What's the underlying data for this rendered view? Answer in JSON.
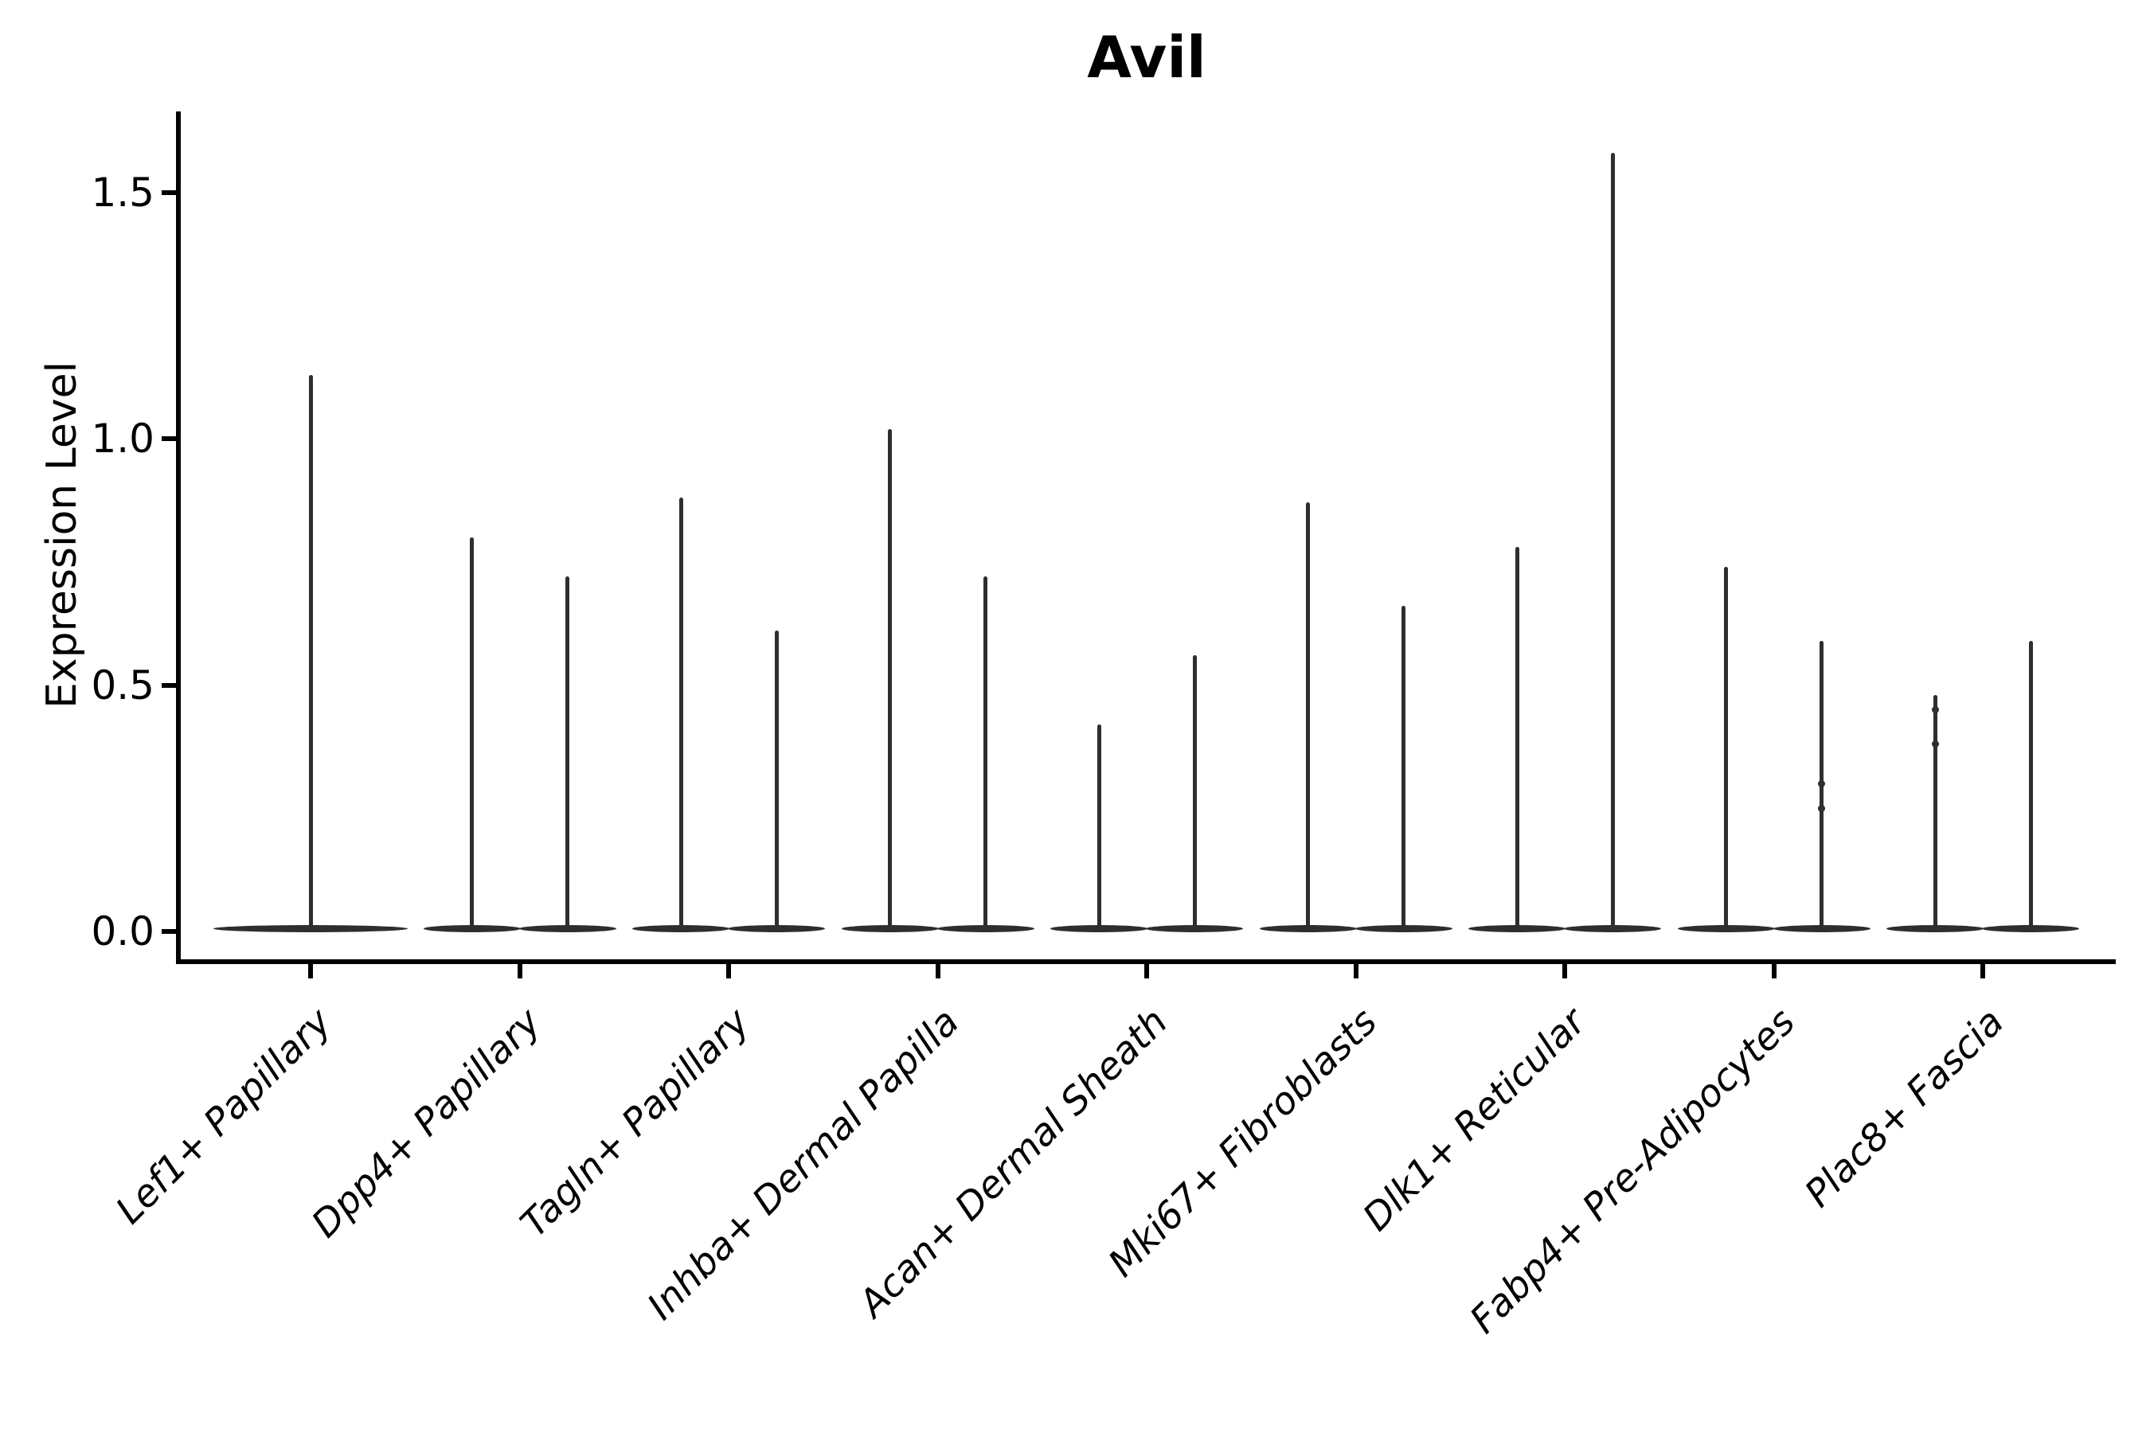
{
  "chart_data": {
    "type": "violin",
    "title": "Avil",
    "xlabel": "",
    "ylabel": "Expression Level",
    "yticks": [
      "0.0",
      "0.5",
      "1.0",
      "1.5"
    ],
    "ytick_values": [
      0.0,
      0.5,
      1.0,
      1.5
    ],
    "ylim": [
      0,
      1.67
    ],
    "grid": false,
    "legend": "none",
    "violin_color": "#2e2e2e",
    "axis_color": "#000000",
    "categories": [
      {
        "label": "Lef1+ Papillary",
        "violins": [
          {
            "max": 1.13,
            "full_width": true,
            "bumps": []
          }
        ]
      },
      {
        "label": "Dpp4+ Papillary",
        "violins": [
          {
            "max": 0.8,
            "bumps": []
          },
          {
            "max": 0.72,
            "bumps": []
          }
        ]
      },
      {
        "label": "Tagln+ Papillary",
        "violins": [
          {
            "max": 0.88,
            "bumps": []
          },
          {
            "max": 0.61,
            "bumps": []
          }
        ]
      },
      {
        "label": "Inhba+ Dermal Papilla",
        "violins": [
          {
            "max": 1.02,
            "bumps": []
          },
          {
            "max": 0.72,
            "bumps": []
          }
        ]
      },
      {
        "label": "Acan+ Dermal Sheath",
        "violins": [
          {
            "max": 0.42,
            "bumps": []
          },
          {
            "max": 0.56,
            "bumps": []
          }
        ]
      },
      {
        "label": "Mki67+ Fibroblasts",
        "violins": [
          {
            "max": 0.87,
            "bumps": []
          },
          {
            "max": 0.66,
            "bumps": []
          }
        ]
      },
      {
        "label": "Dlk1+ Reticular",
        "violins": [
          {
            "max": 0.78,
            "bumps": []
          },
          {
            "max": 1.58,
            "bumps": []
          }
        ]
      },
      {
        "label": "Fabp4+ Pre-Adipocytes",
        "violins": [
          {
            "max": 0.74,
            "bumps": []
          },
          {
            "max": 0.59,
            "bumps": [
              0.3,
              0.25
            ]
          }
        ]
      },
      {
        "label": "Plac8+ Fascia",
        "violins": [
          {
            "max": 0.48,
            "bumps": [
              0.45,
              0.38
            ]
          },
          {
            "max": 0.59,
            "bumps": []
          }
        ]
      }
    ]
  }
}
